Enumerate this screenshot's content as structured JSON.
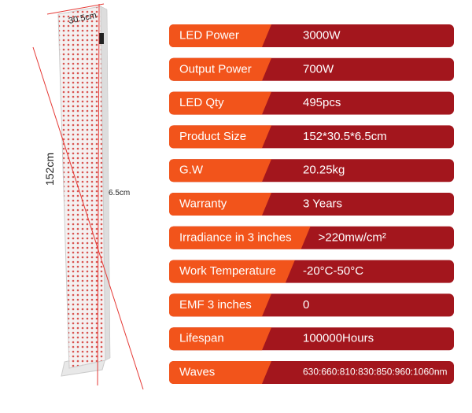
{
  "dimensions": {
    "width": "30.5cm",
    "height": "152cm",
    "depth": "6.5cm"
  },
  "specs": [
    {
      "label": "LED Power",
      "value": "3000W"
    },
    {
      "label": "Output Power",
      "value": "700W"
    },
    {
      "label": "LED Qty",
      "value": "495pcs"
    },
    {
      "label": "Product Size",
      "value": "152*30.5*6.5cm"
    },
    {
      "label": "G.W",
      "value": "20.25kg"
    },
    {
      "label": "Warranty",
      "value": "3 Years"
    },
    {
      "label": "Irradiance in 3 inches",
      "value": ">220mw/cm²"
    },
    {
      "label": "Work Temperature",
      "value": "-20°C-50°C"
    },
    {
      "label": "EMF 3 inches",
      "value": "0"
    },
    {
      "label": "Lifespan",
      "value": "100000Hours"
    },
    {
      "label": "Waves",
      "value": "630:660:810:830:850:960:1060nm"
    }
  ]
}
